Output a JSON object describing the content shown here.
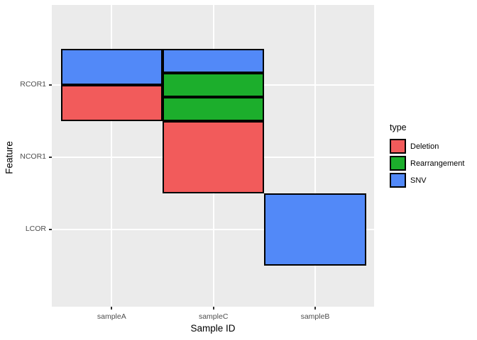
{
  "figure": {
    "background": "#FFFFFF",
    "panel_background": "#EBEBEB",
    "gridline_color": "#FFFFFF",
    "tile_border_color": "#000000",
    "tick_label_color": "#4D4D4D",
    "axis_title_color": "#000000"
  },
  "chart_data": {
    "type": "heatmap",
    "title": "",
    "xlabel": "Sample ID",
    "ylabel": "Feature",
    "x_categories": [
      "sampleA",
      "sampleC",
      "sampleB"
    ],
    "y_categories_top_to_bottom": [
      "RCOR1",
      "NCOR1",
      "LCOR"
    ],
    "grid": true,
    "legend_position": "right",
    "legend": {
      "title": "type",
      "entries": [
        {
          "label": "Deletion",
          "color": "#F25B5B"
        },
        {
          "label": "Rearrangement",
          "color": "#1CAE2C"
        },
        {
          "label": "SNV",
          "color": "#5289F8"
        }
      ]
    },
    "tiles": [
      {
        "sample": "sampleA",
        "feature": "RCOR1",
        "segments": [
          "SNV",
          "Deletion"
        ]
      },
      {
        "sample": "sampleC",
        "feature": "RCOR1",
        "segments": [
          "SNV",
          "Rearrangement",
          "Rearrangement"
        ]
      },
      {
        "sample": "sampleC",
        "feature": "NCOR1",
        "segments": [
          "Deletion"
        ]
      },
      {
        "sample": "sampleB",
        "feature": "LCOR",
        "segments": [
          "SNV"
        ]
      }
    ]
  }
}
